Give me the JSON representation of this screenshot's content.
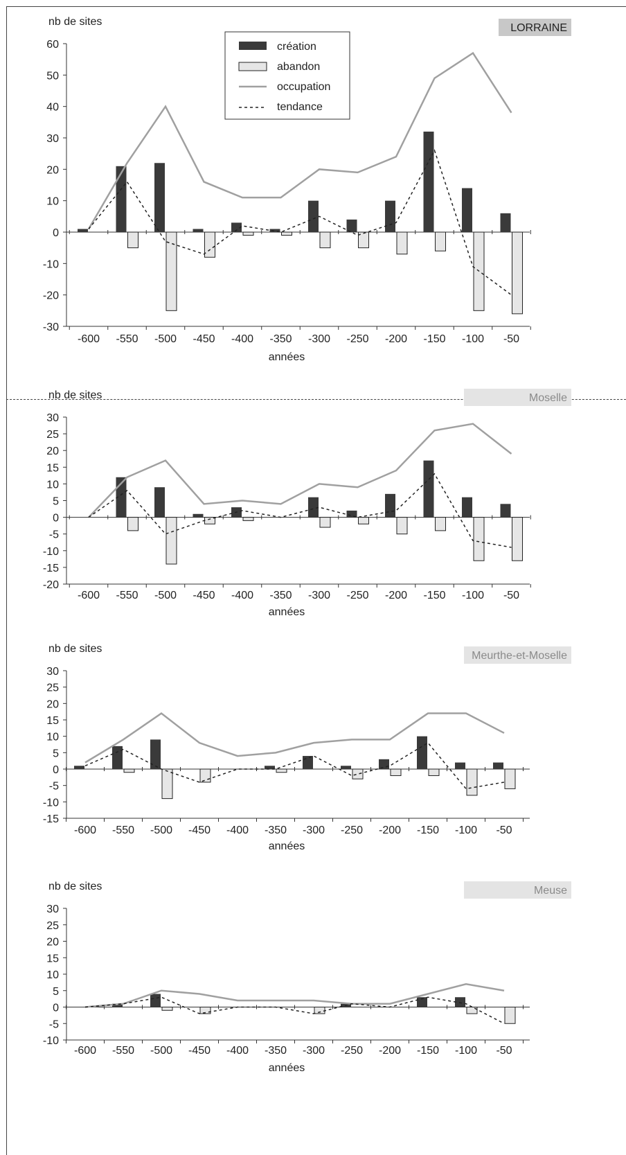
{
  "colors": {
    "creation": "#3a3a3a",
    "abandon": "#e6e6e6",
    "abandon_stroke": "#222222",
    "occupation": "#a0a0a0",
    "tendance": "#222222",
    "badge_lorraine": "#c8c8c8",
    "badge_dept": "#e4e4e4",
    "badge_dept_text": "#8a8a8a"
  },
  "legend": {
    "creation": "création",
    "abandon": "abandon",
    "occupation": "occupation",
    "tendance": "tendance"
  },
  "chart_data": [
    {
      "type": "bar",
      "region": "LORRAINE",
      "ylabel": "nb de sites",
      "xlabel": "années",
      "categories": [
        "-600",
        "-550",
        "-500",
        "-450",
        "-400",
        "-350",
        "-300",
        "-250",
        "-200",
        "-150",
        "-100",
        "-50"
      ],
      "ylim": [
        -30,
        60
      ],
      "yticks": [
        60,
        50,
        40,
        30,
        20,
        10,
        0,
        -10,
        -20,
        -30
      ],
      "series": [
        {
          "name": "création",
          "kind": "bar",
          "values": [
            1,
            21,
            22,
            1,
            3,
            1,
            10,
            4,
            10,
            32,
            14,
            6
          ]
        },
        {
          "name": "abandon",
          "kind": "bar",
          "values": [
            0,
            -5,
            -25,
            -8,
            -1,
            -1,
            -5,
            -5,
            -7,
            -6,
            -25,
            -26
          ]
        },
        {
          "name": "occupation",
          "kind": "line",
          "values": [
            1,
            22,
            40,
            16,
            11,
            11,
            20,
            19,
            24,
            49,
            57,
            38
          ]
        },
        {
          "name": "tendance",
          "kind": "dashed",
          "values": [
            1,
            16,
            -3,
            -7,
            2,
            0,
            5,
            -1,
            3,
            26,
            -11,
            -20
          ]
        }
      ]
    },
    {
      "type": "bar",
      "region": "Moselle",
      "ylabel": "nb de sites",
      "xlabel": "années",
      "categories": [
        "-600",
        "-550",
        "-500",
        "-450",
        "-400",
        "-350",
        "-300",
        "-250",
        "-200",
        "-150",
        "-100",
        "-50"
      ],
      "ylim": [
        -20,
        30
      ],
      "yticks": [
        30,
        25,
        20,
        15,
        10,
        5,
        0,
        -5,
        -10,
        -15,
        -20
      ],
      "series": [
        {
          "name": "création",
          "kind": "bar",
          "values": [
            0,
            12,
            9,
            1,
            3,
            0,
            6,
            2,
            7,
            17,
            6,
            4
          ]
        },
        {
          "name": "abandon",
          "kind": "bar",
          "values": [
            0,
            -4,
            -14,
            -2,
            -1,
            0,
            -3,
            -2,
            -5,
            -4,
            -13,
            -13
          ]
        },
        {
          "name": "occupation",
          "kind": "line",
          "values": [
            0,
            12,
            17,
            4,
            5,
            4,
            10,
            9,
            14,
            26,
            28,
            19
          ]
        },
        {
          "name": "tendance",
          "kind": "dashed",
          "values": [
            0,
            8,
            -5,
            -1,
            2,
            0,
            3,
            0,
            2,
            13,
            -7,
            -9
          ]
        }
      ]
    },
    {
      "type": "bar",
      "region": "Meurthe-et-Moselle",
      "ylabel": "nb de sites",
      "xlabel": "années",
      "categories": [
        "-600",
        "-550",
        "-500",
        "-450",
        "-400",
        "-350",
        "-300",
        "-250",
        "-200",
        "-150",
        "-100",
        "-50"
      ],
      "ylim": [
        -15,
        30
      ],
      "yticks": [
        30,
        25,
        20,
        15,
        10,
        5,
        0,
        -5,
        -10,
        -15
      ],
      "series": [
        {
          "name": "création",
          "kind": "bar",
          "values": [
            1,
            7,
            9,
            0,
            0,
            1,
            4,
            1,
            3,
            10,
            2,
            2
          ]
        },
        {
          "name": "abandon",
          "kind": "bar",
          "values": [
            0,
            -1,
            -9,
            -4,
            0,
            -1,
            0,
            -3,
            -2,
            -2,
            -8,
            -6
          ]
        },
        {
          "name": "occupation",
          "kind": "line",
          "values": [
            2,
            9,
            17,
            8,
            4,
            5,
            8,
            9,
            9,
            17,
            17,
            11
          ]
        },
        {
          "name": "tendance",
          "kind": "dashed",
          "values": [
            1,
            6,
            0,
            -4,
            0,
            0,
            4,
            -2,
            1,
            8,
            -6,
            -4
          ]
        }
      ]
    },
    {
      "type": "bar",
      "region": "Meuse",
      "ylabel": "nb de sites",
      "xlabel": "années",
      "categories": [
        "-600",
        "-550",
        "-500",
        "-450",
        "-400",
        "-350",
        "-300",
        "-250",
        "-200",
        "-150",
        "-100",
        "-50"
      ],
      "ylim": [
        -10,
        30
      ],
      "yticks": [
        30,
        25,
        20,
        15,
        10,
        5,
        0,
        -5,
        -10
      ],
      "series": [
        {
          "name": "création",
          "kind": "bar",
          "values": [
            0,
            1,
            4,
            0,
            0,
            0,
            0,
            1,
            0,
            3,
            3,
            0
          ]
        },
        {
          "name": "abandon",
          "kind": "bar",
          "values": [
            0,
            0,
            -1,
            -2,
            0,
            0,
            -2,
            0,
            0,
            0,
            -2,
            -5
          ]
        },
        {
          "name": "occupation",
          "kind": "line",
          "values": [
            0,
            1,
            5,
            4,
            2,
            2,
            2,
            1,
            1,
            4,
            7,
            5
          ]
        },
        {
          "name": "tendance",
          "kind": "dashed",
          "values": [
            0,
            1,
            3,
            -2,
            0,
            0,
            -2,
            1,
            0,
            3,
            1,
            -5
          ]
        }
      ]
    }
  ]
}
